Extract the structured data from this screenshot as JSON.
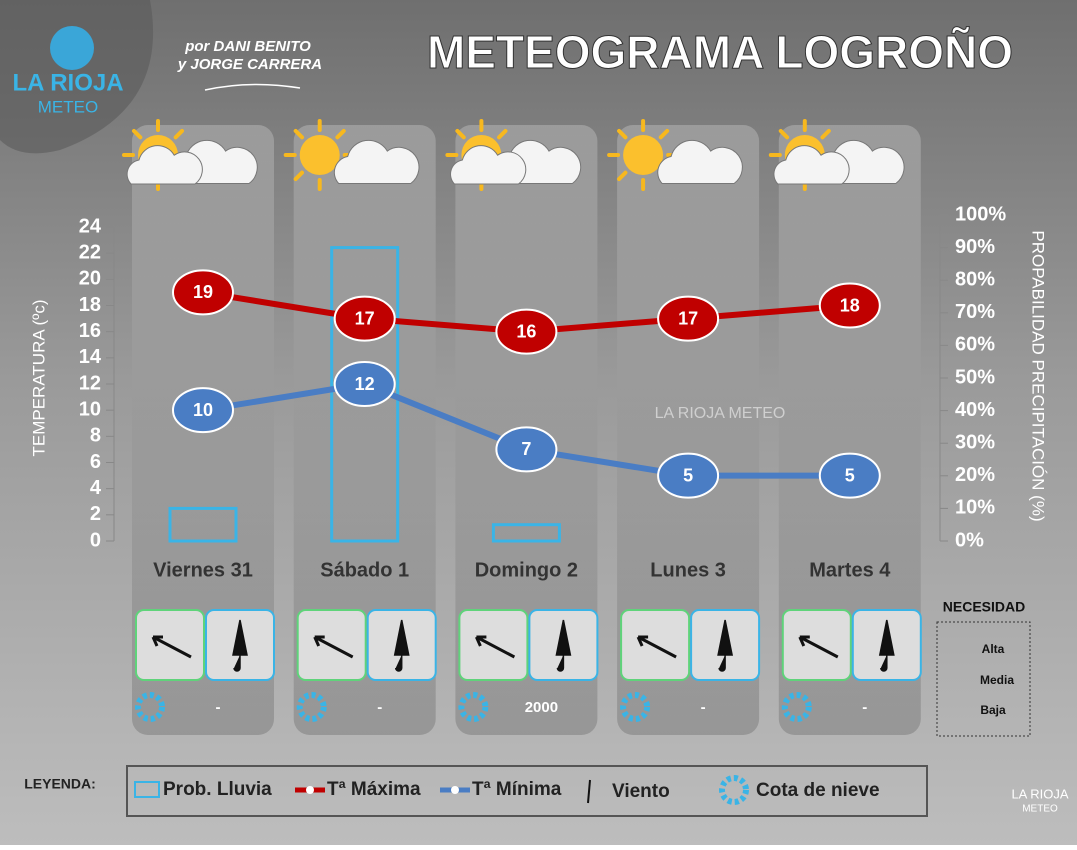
{
  "header": {
    "title": "METEOGRAMA LOGROÑO",
    "authors": [
      "por DANI BENITO",
      "y JORGE CARRERA"
    ],
    "logo": [
      "LA RIOJA",
      "METEO"
    ]
  },
  "chart_data": {
    "type": "meteogram",
    "watermark": "LA RIOJA METEO",
    "categories": [
      "Viernes 31",
      "Sábado 1",
      "Domingo 2",
      "Lunes 3",
      "Martes 4"
    ],
    "ylabel": "TEMPERATURA (ºc)",
    "y2label": "PROPABILIDAD PRECIPITACIÓN (%)",
    "ylim": [
      0,
      24
    ],
    "yticks": [
      0,
      2,
      4,
      6,
      8,
      10,
      12,
      14,
      16,
      18,
      20,
      22,
      24
    ],
    "y2lim": [
      0,
      100
    ],
    "y2ticks": [
      {
        "value": 0,
        "label": "0%"
      },
      {
        "value": 10,
        "label": "10%"
      },
      {
        "value": 20,
        "label": "20%"
      },
      {
        "value": 30,
        "label": "30%"
      },
      {
        "value": 40,
        "label": "40%"
      },
      {
        "value": 50,
        "label": "50%"
      },
      {
        "value": 60,
        "label": "60%"
      },
      {
        "value": 70,
        "label": "70%"
      },
      {
        "value": 80,
        "label": "80%"
      },
      {
        "value": 90,
        "label": "90%"
      },
      {
        "value": 100,
        "label": "100%"
      }
    ],
    "series": [
      {
        "name": "Prob. Lluvia",
        "type": "bar",
        "axis": "y2",
        "color": "#3ab4e6",
        "values": [
          10,
          90,
          5,
          0,
          0
        ]
      },
      {
        "name": "Tª Máxima",
        "type": "line",
        "color": "#c00000",
        "values": [
          19,
          17,
          16,
          17,
          18
        ]
      },
      {
        "name": "Tª Mínima",
        "type": "line",
        "color": "#4a7dc4",
        "values": [
          10,
          12,
          7,
          5,
          5
        ]
      }
    ]
  },
  "snow_level": [
    "-",
    "-",
    "2000",
    "-",
    "-"
  ],
  "legend": {
    "title": "LEYENDA:",
    "wind": "Viento",
    "snow": "Cota de nieve"
  },
  "necessity": {
    "title": "NECESIDAD",
    "levels": [
      "Alta",
      "Media",
      "Baja"
    ]
  },
  "footer": {
    "logo": [
      "LA RIOJA",
      "METEO"
    ]
  }
}
